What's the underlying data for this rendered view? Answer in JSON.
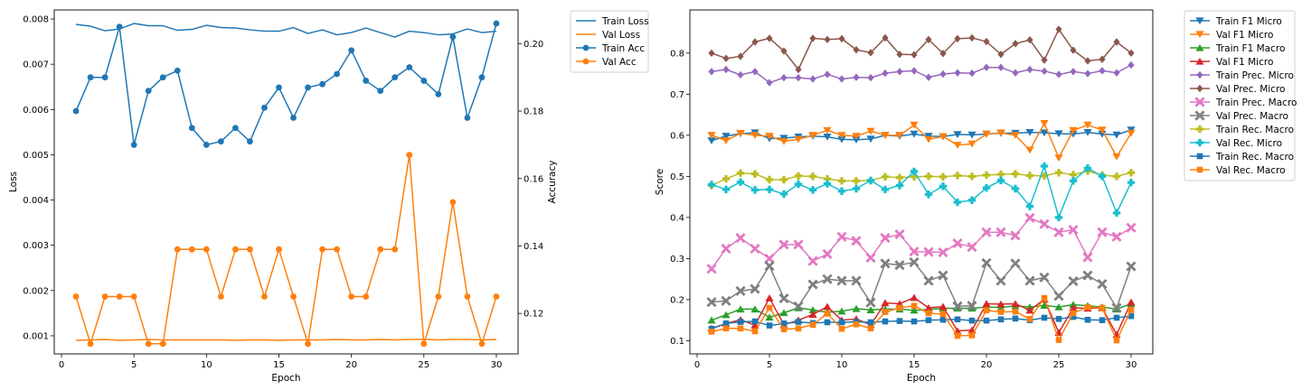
{
  "chart_data": [
    {
      "type": "line",
      "xlabel": "Epoch",
      "ylabel": "Loss",
      "y2label": "Accuracy",
      "grid": false,
      "legend": "outside-top-right",
      "xlim": [
        -0.5,
        31.5
      ],
      "ylim": [
        0.0006,
        0.0082
      ],
      "y2lim": [
        0.108,
        0.21
      ],
      "xticks": [
        0,
        5,
        10,
        15,
        20,
        25,
        30
      ],
      "yticks": [
        0.001,
        0.002,
        0.003,
        0.004,
        0.005,
        0.006,
        0.007,
        0.008
      ],
      "y2ticks": [
        0.12,
        0.14,
        0.16,
        0.18,
        0.2
      ],
      "x": [
        1,
        2,
        3,
        4,
        5,
        6,
        7,
        8,
        9,
        10,
        11,
        12,
        13,
        14,
        15,
        16,
        17,
        18,
        19,
        20,
        21,
        22,
        23,
        24,
        25,
        26,
        27,
        28,
        29,
        30
      ],
      "series": [
        {
          "name": "Train Loss",
          "axis": "left",
          "color": "#1f77b4",
          "marker": "none",
          "values": [
            0.00788,
            0.00784,
            0.00774,
            0.00778,
            0.0079,
            0.00785,
            0.00785,
            0.00775,
            0.00777,
            0.00786,
            0.00781,
            0.0078,
            0.00776,
            0.00773,
            0.00773,
            0.00781,
            0.00768,
            0.00776,
            0.00765,
            0.0077,
            0.0078,
            0.0077,
            0.0076,
            0.00773,
            0.0077,
            0.00765,
            0.00767,
            0.00778,
            0.0077,
            0.00773
          ]
        },
        {
          "name": "Val Loss",
          "axis": "left",
          "color": "#ff7f0e",
          "marker": "none",
          "values": [
            0.0009,
            0.00091,
            0.00092,
            0.0009,
            0.00091,
            0.00092,
            0.00091,
            0.00091,
            0.00091,
            0.00091,
            0.00091,
            0.0009,
            0.00091,
            0.00091,
            0.0009,
            0.00091,
            0.00091,
            0.00091,
            0.00092,
            0.00091,
            0.00091,
            0.00092,
            0.00091,
            0.00092,
            0.00092,
            0.00091,
            0.00092,
            0.00092,
            0.00091,
            0.00092
          ]
        },
        {
          "name": "Train Acc",
          "axis": "right",
          "color": "#1f77b4",
          "marker": "circle",
          "values": [
            0.18,
            0.19,
            0.19,
            0.205,
            0.17,
            0.186,
            0.19,
            0.192,
            0.175,
            0.17,
            0.171,
            0.175,
            0.171,
            0.181,
            0.187,
            0.178,
            0.187,
            0.188,
            0.191,
            0.198,
            0.189,
            0.186,
            0.19,
            0.193,
            0.189,
            0.185,
            0.202,
            0.178,
            0.19,
            0.206
          ]
        },
        {
          "name": "Val Acc",
          "axis": "right",
          "color": "#ff7f0e",
          "marker": "circle",
          "values": [
            0.125,
            0.111,
            0.125,
            0.125,
            0.125,
            0.111,
            0.111,
            0.139,
            0.139,
            0.139,
            0.125,
            0.139,
            0.139,
            0.125,
            0.139,
            0.125,
            0.111,
            0.139,
            0.139,
            0.125,
            0.125,
            0.139,
            0.139,
            0.167,
            0.111,
            0.125,
            0.153,
            0.125,
            0.111,
            0.125
          ]
        }
      ]
    },
    {
      "type": "line",
      "xlabel": "Epoch",
      "ylabel": "Score",
      "grid": false,
      "legend": "outside-top-right",
      "xlim": [
        -0.5,
        31.5
      ],
      "ylim": [
        0.068,
        0.905
      ],
      "xticks": [
        0,
        5,
        10,
        15,
        20,
        25,
        30
      ],
      "yticks": [
        0.1,
        0.2,
        0.3,
        0.4,
        0.5,
        0.6,
        0.7,
        0.8
      ],
      "x": [
        1,
        2,
        3,
        4,
        5,
        6,
        7,
        8,
        9,
        10,
        11,
        12,
        13,
        14,
        15,
        16,
        17,
        18,
        19,
        20,
        21,
        22,
        23,
        24,
        25,
        26,
        27,
        28,
        29,
        30
      ],
      "series": [
        {
          "name": "Train F1 Micro",
          "color": "#1f77b4",
          "marker": "tri-down",
          "values": [
            0.587,
            0.598,
            0.604,
            0.606,
            0.592,
            0.593,
            0.596,
            0.598,
            0.596,
            0.59,
            0.589,
            0.591,
            0.6,
            0.598,
            0.603,
            0.598,
            0.597,
            0.602,
            0.601,
            0.603,
            0.605,
            0.605,
            0.607,
            0.606,
            0.604,
            0.603,
            0.607,
            0.603,
            0.601,
            0.613
          ]
        },
        {
          "name": "Val F1 Micro",
          "color": "#ff7f0e",
          "marker": "tri-down",
          "values": [
            0.6,
            0.587,
            0.605,
            0.6,
            0.598,
            0.585,
            0.59,
            0.6,
            0.612,
            0.6,
            0.598,
            0.61,
            0.6,
            0.6,
            0.625,
            0.59,
            0.597,
            0.576,
            0.579,
            0.603,
            0.606,
            0.6,
            0.564,
            0.629,
            0.545,
            0.612,
            0.625,
            0.613,
            0.548,
            0.605
          ]
        },
        {
          "name": "Train F1 Macro",
          "color": "#2ca02c",
          "marker": "tri-up",
          "values": [
            0.15,
            0.163,
            0.177,
            0.177,
            0.157,
            0.168,
            0.18,
            0.175,
            0.169,
            0.172,
            0.178,
            0.175,
            0.177,
            0.177,
            0.174,
            0.176,
            0.179,
            0.179,
            0.179,
            0.182,
            0.181,
            0.185,
            0.182,
            0.186,
            0.182,
            0.188,
            0.185,
            0.182,
            0.177,
            0.19
          ]
        },
        {
          "name": "Val F1 Micro",
          "color": "#d62728",
          "marker": "tri-up",
          "values": [
            0.13,
            0.142,
            0.151,
            0.138,
            0.204,
            0.139,
            0.15,
            0.164,
            0.183,
            0.15,
            0.153,
            0.139,
            0.192,
            0.19,
            0.205,
            0.18,
            0.183,
            0.124,
            0.126,
            0.19,
            0.189,
            0.19,
            0.174,
            0.201,
            0.12,
            0.18,
            0.179,
            0.18,
            0.115,
            0.194
          ]
        },
        {
          "name": "Train Prec. Micro",
          "color": "#9467bd",
          "marker": "diamond",
          "values": [
            0.755,
            0.76,
            0.747,
            0.755,
            0.728,
            0.74,
            0.74,
            0.737,
            0.748,
            0.737,
            0.741,
            0.74,
            0.751,
            0.755,
            0.757,
            0.741,
            0.749,
            0.752,
            0.751,
            0.765,
            0.765,
            0.752,
            0.76,
            0.756,
            0.748,
            0.755,
            0.75,
            0.757,
            0.752,
            0.771
          ]
        },
        {
          "name": "Val Prec. Micro",
          "color": "#8c564b",
          "marker": "diamond",
          "values": [
            0.8,
            0.787,
            0.792,
            0.827,
            0.836,
            0.805,
            0.76,
            0.836,
            0.833,
            0.835,
            0.808,
            0.801,
            0.837,
            0.797,
            0.796,
            0.833,
            0.799,
            0.835,
            0.837,
            0.828,
            0.797,
            0.823,
            0.832,
            0.783,
            0.858,
            0.807,
            0.781,
            0.785,
            0.827,
            0.8
          ]
        },
        {
          "name": "Train Prec. Macro",
          "color": "#e377c2",
          "marker": "x-fill",
          "values": [
            0.275,
            0.324,
            0.35,
            0.324,
            0.3,
            0.334,
            0.334,
            0.294,
            0.311,
            0.353,
            0.343,
            0.302,
            0.35,
            0.359,
            0.317,
            0.316,
            0.315,
            0.337,
            0.328,
            0.364,
            0.364,
            0.356,
            0.399,
            0.384,
            0.364,
            0.37,
            0.303,
            0.364,
            0.353,
            0.375
          ]
        },
        {
          "name": "Val Prec. Macro",
          "color": "#7f7f7f",
          "marker": "x-fill",
          "values": [
            0.194,
            0.197,
            0.221,
            0.226,
            0.282,
            0.203,
            0.184,
            0.237,
            0.25,
            0.246,
            0.246,
            0.193,
            0.288,
            0.284,
            0.291,
            0.246,
            0.259,
            0.184,
            0.185,
            0.289,
            0.246,
            0.288,
            0.246,
            0.254,
            0.209,
            0.245,
            0.259,
            0.238,
            0.18,
            0.281
          ]
        },
        {
          "name": "Train Rec. Macro",
          "color": "#bcbd22",
          "marker": "plus",
          "values": [
            0.478,
            0.494,
            0.508,
            0.506,
            0.492,
            0.492,
            0.501,
            0.5,
            0.494,
            0.489,
            0.489,
            0.49,
            0.499,
            0.497,
            0.499,
            0.5,
            0.499,
            0.502,
            0.5,
            0.503,
            0.505,
            0.506,
            0.502,
            0.501,
            0.509,
            0.504,
            0.513,
            0.503,
            0.5,
            0.509
          ]
        },
        {
          "name": "Val Rec. Micro",
          "color": "#17becf",
          "marker": "plus",
          "values": [
            0.48,
            0.468,
            0.486,
            0.467,
            0.468,
            0.457,
            0.481,
            0.467,
            0.482,
            0.464,
            0.47,
            0.49,
            0.468,
            0.478,
            0.512,
            0.456,
            0.476,
            0.437,
            0.442,
            0.472,
            0.49,
            0.47,
            0.427,
            0.525,
            0.4,
            0.489,
            0.52,
            0.5,
            0.411,
            0.485
          ]
        },
        {
          "name": "Train Rec. Macro",
          "color": "#1f77b4",
          "marker": "square",
          "values": [
            0.129,
            0.142,
            0.146,
            0.147,
            0.137,
            0.142,
            0.146,
            0.143,
            0.145,
            0.145,
            0.146,
            0.145,
            0.147,
            0.148,
            0.147,
            0.15,
            0.151,
            0.152,
            0.149,
            0.149,
            0.152,
            0.154,
            0.15,
            0.156,
            0.153,
            0.158,
            0.151,
            0.15,
            0.156,
            0.16
          ]
        },
        {
          "name": "Val Rec. Macro",
          "color": "#ff7f0e",
          "marker": "square",
          "values": [
            0.122,
            0.13,
            0.13,
            0.123,
            0.18,
            0.128,
            0.13,
            0.139,
            0.166,
            0.129,
            0.14,
            0.13,
            0.17,
            0.18,
            0.185,
            0.167,
            0.165,
            0.112,
            0.113,
            0.174,
            0.17,
            0.171,
            0.153,
            0.204,
            0.102,
            0.167,
            0.182,
            0.18,
            0.101,
            0.175
          ]
        }
      ]
    }
  ]
}
